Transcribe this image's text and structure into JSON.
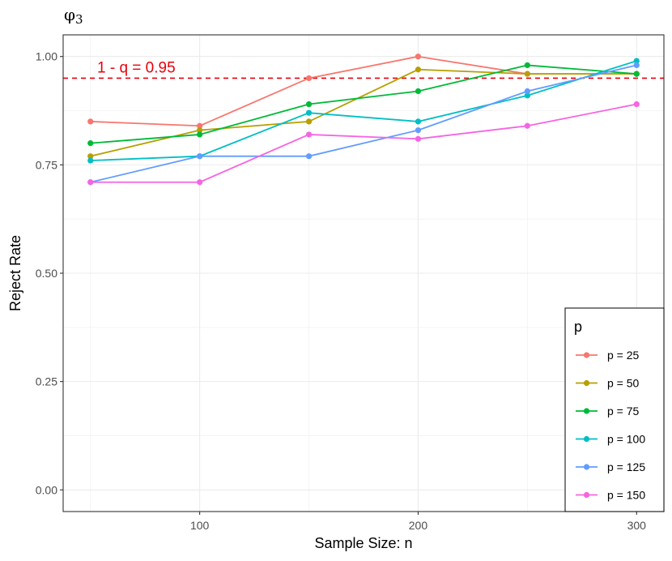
{
  "chart_data": {
    "type": "line",
    "title": "φ3",
    "title_parts": {
      "base": "φ",
      "sub": "3"
    },
    "xlabel": "Sample Size: n",
    "ylabel": "Reject Rate",
    "x": [
      50,
      100,
      150,
      200,
      250,
      300
    ],
    "xlim": [
      37.5,
      312.5
    ],
    "ylim": [
      -0.05,
      1.05
    ],
    "xticks": [
      100,
      200,
      300
    ],
    "xtick_labels": [
      "100",
      "200",
      "300"
    ],
    "yticks": [
      0,
      0.25,
      0.5,
      0.75,
      1.0
    ],
    "ytick_labels": [
      "0.00",
      "0.25",
      "0.50",
      "0.75",
      "1.00"
    ],
    "grid": true,
    "reference_line": {
      "y": 0.95,
      "label": "1 -  q  = 0.95",
      "color": "#e8000b",
      "style": "dashed"
    },
    "legend": {
      "title": "p",
      "position": "bottom-right"
    },
    "series": [
      {
        "name": "p = 25",
        "color": "#F8766D",
        "values": [
          0.85,
          0.84,
          0.95,
          1.0,
          0.96,
          0.96
        ]
      },
      {
        "name": "p = 50",
        "color": "#B79F00",
        "values": [
          0.77,
          0.83,
          0.85,
          0.97,
          0.96,
          0.96
        ]
      },
      {
        "name": "p = 75",
        "color": "#00BA38",
        "values": [
          0.8,
          0.82,
          0.89,
          0.92,
          0.98,
          0.96
        ]
      },
      {
        "name": "p = 100",
        "color": "#00BFC4",
        "values": [
          0.76,
          0.77,
          0.87,
          0.85,
          0.91,
          0.99
        ]
      },
      {
        "name": "p = 125",
        "color": "#619CFF",
        "values": [
          0.71,
          0.77,
          0.77,
          0.83,
          0.92,
          0.98
        ]
      },
      {
        "name": "p = 150",
        "color": "#F564E3",
        "values": [
          0.71,
          0.71,
          0.82,
          0.81,
          0.84,
          0.89
        ]
      }
    ]
  }
}
